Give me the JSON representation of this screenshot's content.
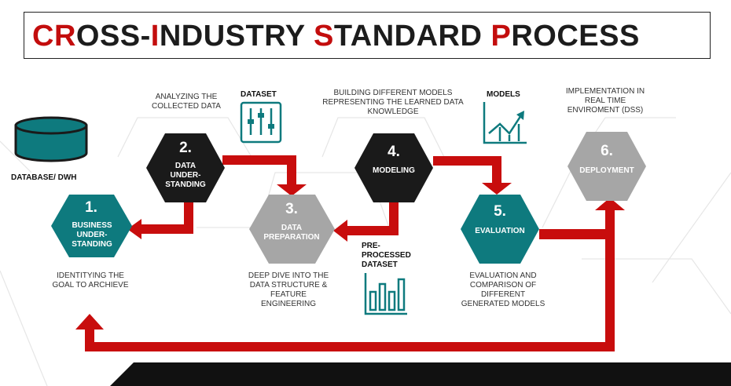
{
  "title": {
    "parts": [
      {
        "text": "CR",
        "color": "#c30d0d"
      },
      {
        "text": "OSS-",
        "color": "#1c1c1c"
      },
      {
        "text": "I",
        "color": "#c30d0d"
      },
      {
        "text": "NDUSTRY ",
        "color": "#1c1c1c"
      },
      {
        "text": "S",
        "color": "#c30d0d"
      },
      {
        "text": "TANDARD ",
        "color": "#1c1c1c"
      },
      {
        "text": "P",
        "color": "#c30d0d"
      },
      {
        "text": "ROCESS",
        "color": "#1c1c1c"
      }
    ]
  },
  "colors": {
    "teal": "#0e7a7e",
    "black": "#1a1a1a",
    "gray": "#a6a6a6",
    "red": "#c80d0d"
  },
  "steps": [
    {
      "num": "1.",
      "name": "BUSINESS UNDER-STANDING",
      "name_lines": [
        "BUSINESS",
        "UNDER-",
        "STANDING"
      ],
      "desc_lines": [
        "IDENTITYING THE",
        "GOAL TO ARCHIEVE"
      ]
    },
    {
      "num": "2.",
      "name": "DATA UNDER-STANDING",
      "name_lines": [
        "DATA",
        "UNDER-",
        "STANDING"
      ],
      "desc_lines": [
        "ANALYZING THE",
        "COLLECTED DATA"
      ]
    },
    {
      "num": "3.",
      "name": "DATA PREPARATION",
      "name_lines": [
        "DATA",
        "PREPARATION"
      ],
      "desc_lines": [
        "DEEP DIVE INTO THE",
        "DATA STRUCTURE &",
        "FEATURE",
        "ENGINEERING"
      ]
    },
    {
      "num": "4.",
      "name": "MODELING",
      "name_lines": [
        "MODELING"
      ],
      "desc_lines": [
        "BUILDING DIFFERENT MODELS",
        "REPRESENTING THE  LEARNED DATA",
        "KNOWLEDGE"
      ]
    },
    {
      "num": "5.",
      "name": "EVALUATION",
      "name_lines": [
        "EVALUATION"
      ],
      "desc_lines": [
        "EVALUATION AND",
        "COMPARISON OF DIFFERENT",
        "GENERATED MODELS"
      ]
    },
    {
      "num": "6.",
      "name": "DEPLOYMENT",
      "name_lines": [
        "DEPLOYMENT"
      ],
      "desc_lines": [
        "IMPLEMENTATION IN",
        "REAL TIME",
        "ENVIROMENT (DSS)"
      ]
    }
  ],
  "artifacts": {
    "database": "DATABASE/ DWH",
    "dataset": "DATASET",
    "models": "MODELS",
    "preprocessed_lines": [
      "PRE-",
      "PROCESSED",
      "DATASET"
    ]
  },
  "icons": {
    "database": "database-icon",
    "dataset": "sliders-icon",
    "models": "line-chart-icon",
    "preprocessed": "bar-chart-icon"
  }
}
